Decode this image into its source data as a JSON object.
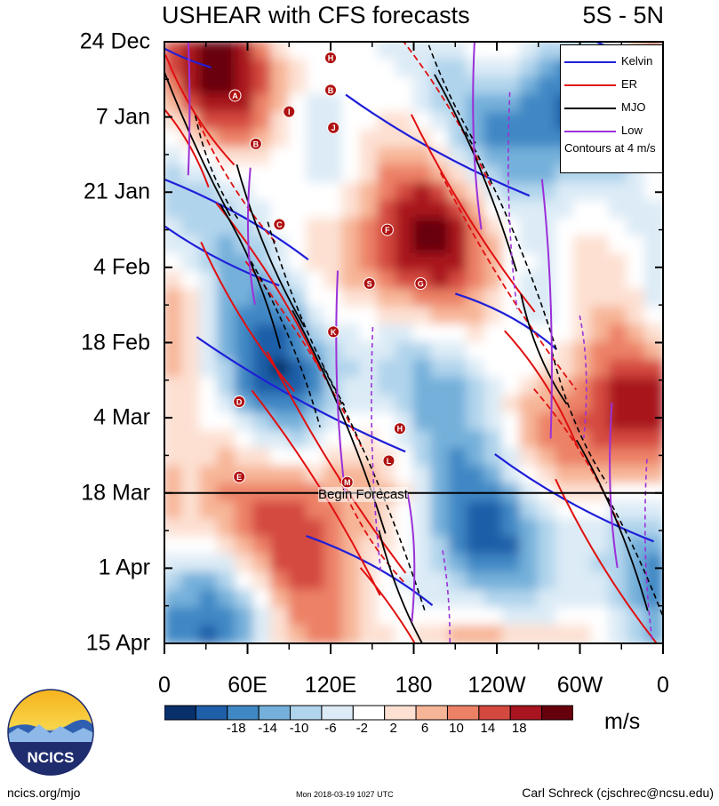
{
  "title": "USHEAR with CFS forecasts",
  "region": "5S - 5N",
  "chart_data": {
    "type": "heatmap",
    "variable": "USHEAR",
    "units": "m/s",
    "x_ticks": [
      "0",
      "60E",
      "120E",
      "180",
      "120W",
      "60W",
      "0"
    ],
    "x_values_deg_east": [
      0,
      60,
      120,
      180,
      240,
      300,
      360
    ],
    "y_ticks": [
      "24 Dec",
      "7 Jan",
      "21 Jan",
      "4 Feb",
      "18 Feb",
      "4 Mar",
      "18 Mar",
      "1 Apr",
      "15 Apr"
    ],
    "forecast_start": "18 Mar",
    "forecast_label": "Begin Forecast",
    "colorbar": {
      "labels": [
        "-18",
        "-14",
        "-10",
        "-6",
        "-2",
        "2",
        "6",
        "10",
        "14",
        "18"
      ],
      "colors": [
        "#08306b",
        "#1f5ea8",
        "#3f88c5",
        "#74b0da",
        "#b0d4ec",
        "#dcebf6",
        "#ffffff",
        "#fde0d2",
        "#f7b597",
        "#ec8166",
        "#d4493f",
        "#a8141f",
        "#67000d"
      ]
    },
    "legend": [
      {
        "name": "Kelvin",
        "color": "#1f1fd8"
      },
      {
        "name": "ER",
        "color": "#e01010"
      },
      {
        "name": "MJO",
        "color": "#000000"
      },
      {
        "name": "Low",
        "color": "#9b30d8"
      }
    ],
    "legend_note": "Contours at 4 m/s",
    "legend_position": "top-right",
    "tc_markers": [
      {
        "letter": "H",
        "lon": 120,
        "date": "27 Dec"
      },
      {
        "letter": "A",
        "lon": 51,
        "date": "3 Jan"
      },
      {
        "letter": "B",
        "lon": 120,
        "date": "2 Jan"
      },
      {
        "letter": "I",
        "lon": 90,
        "date": "6 Jan"
      },
      {
        "letter": "J",
        "lon": 122,
        "date": "9 Jan"
      },
      {
        "letter": "B",
        "lon": 66,
        "date": "12 Jan"
      },
      {
        "letter": "C",
        "lon": 83,
        "date": "27 Jan"
      },
      {
        "letter": "F",
        "lon": 161,
        "date": "28 Jan"
      },
      {
        "letter": "S",
        "lon": 148,
        "date": "7 Feb"
      },
      {
        "letter": "G",
        "lon": 185,
        "date": "7 Feb"
      },
      {
        "letter": "K",
        "lon": 122,
        "date": "16 Feb"
      },
      {
        "letter": "D",
        "lon": 54,
        "date": "1 Mar"
      },
      {
        "letter": "H",
        "lon": 170,
        "date": "6 Mar"
      },
      {
        "letter": "L",
        "lon": 162,
        "date": "12 Mar"
      },
      {
        "letter": "E",
        "lon": 54,
        "date": "15 Mar"
      },
      {
        "letter": "M",
        "lon": 132,
        "date": "16 Mar"
      }
    ]
  },
  "logo": {
    "text": "NCICS"
  },
  "footer": {
    "left": "ncics.org/mjo",
    "middle": "Mon 2018-03-19 1027 UTC",
    "right": "Carl Schreck (cjschrec@ncsu.edu)"
  }
}
